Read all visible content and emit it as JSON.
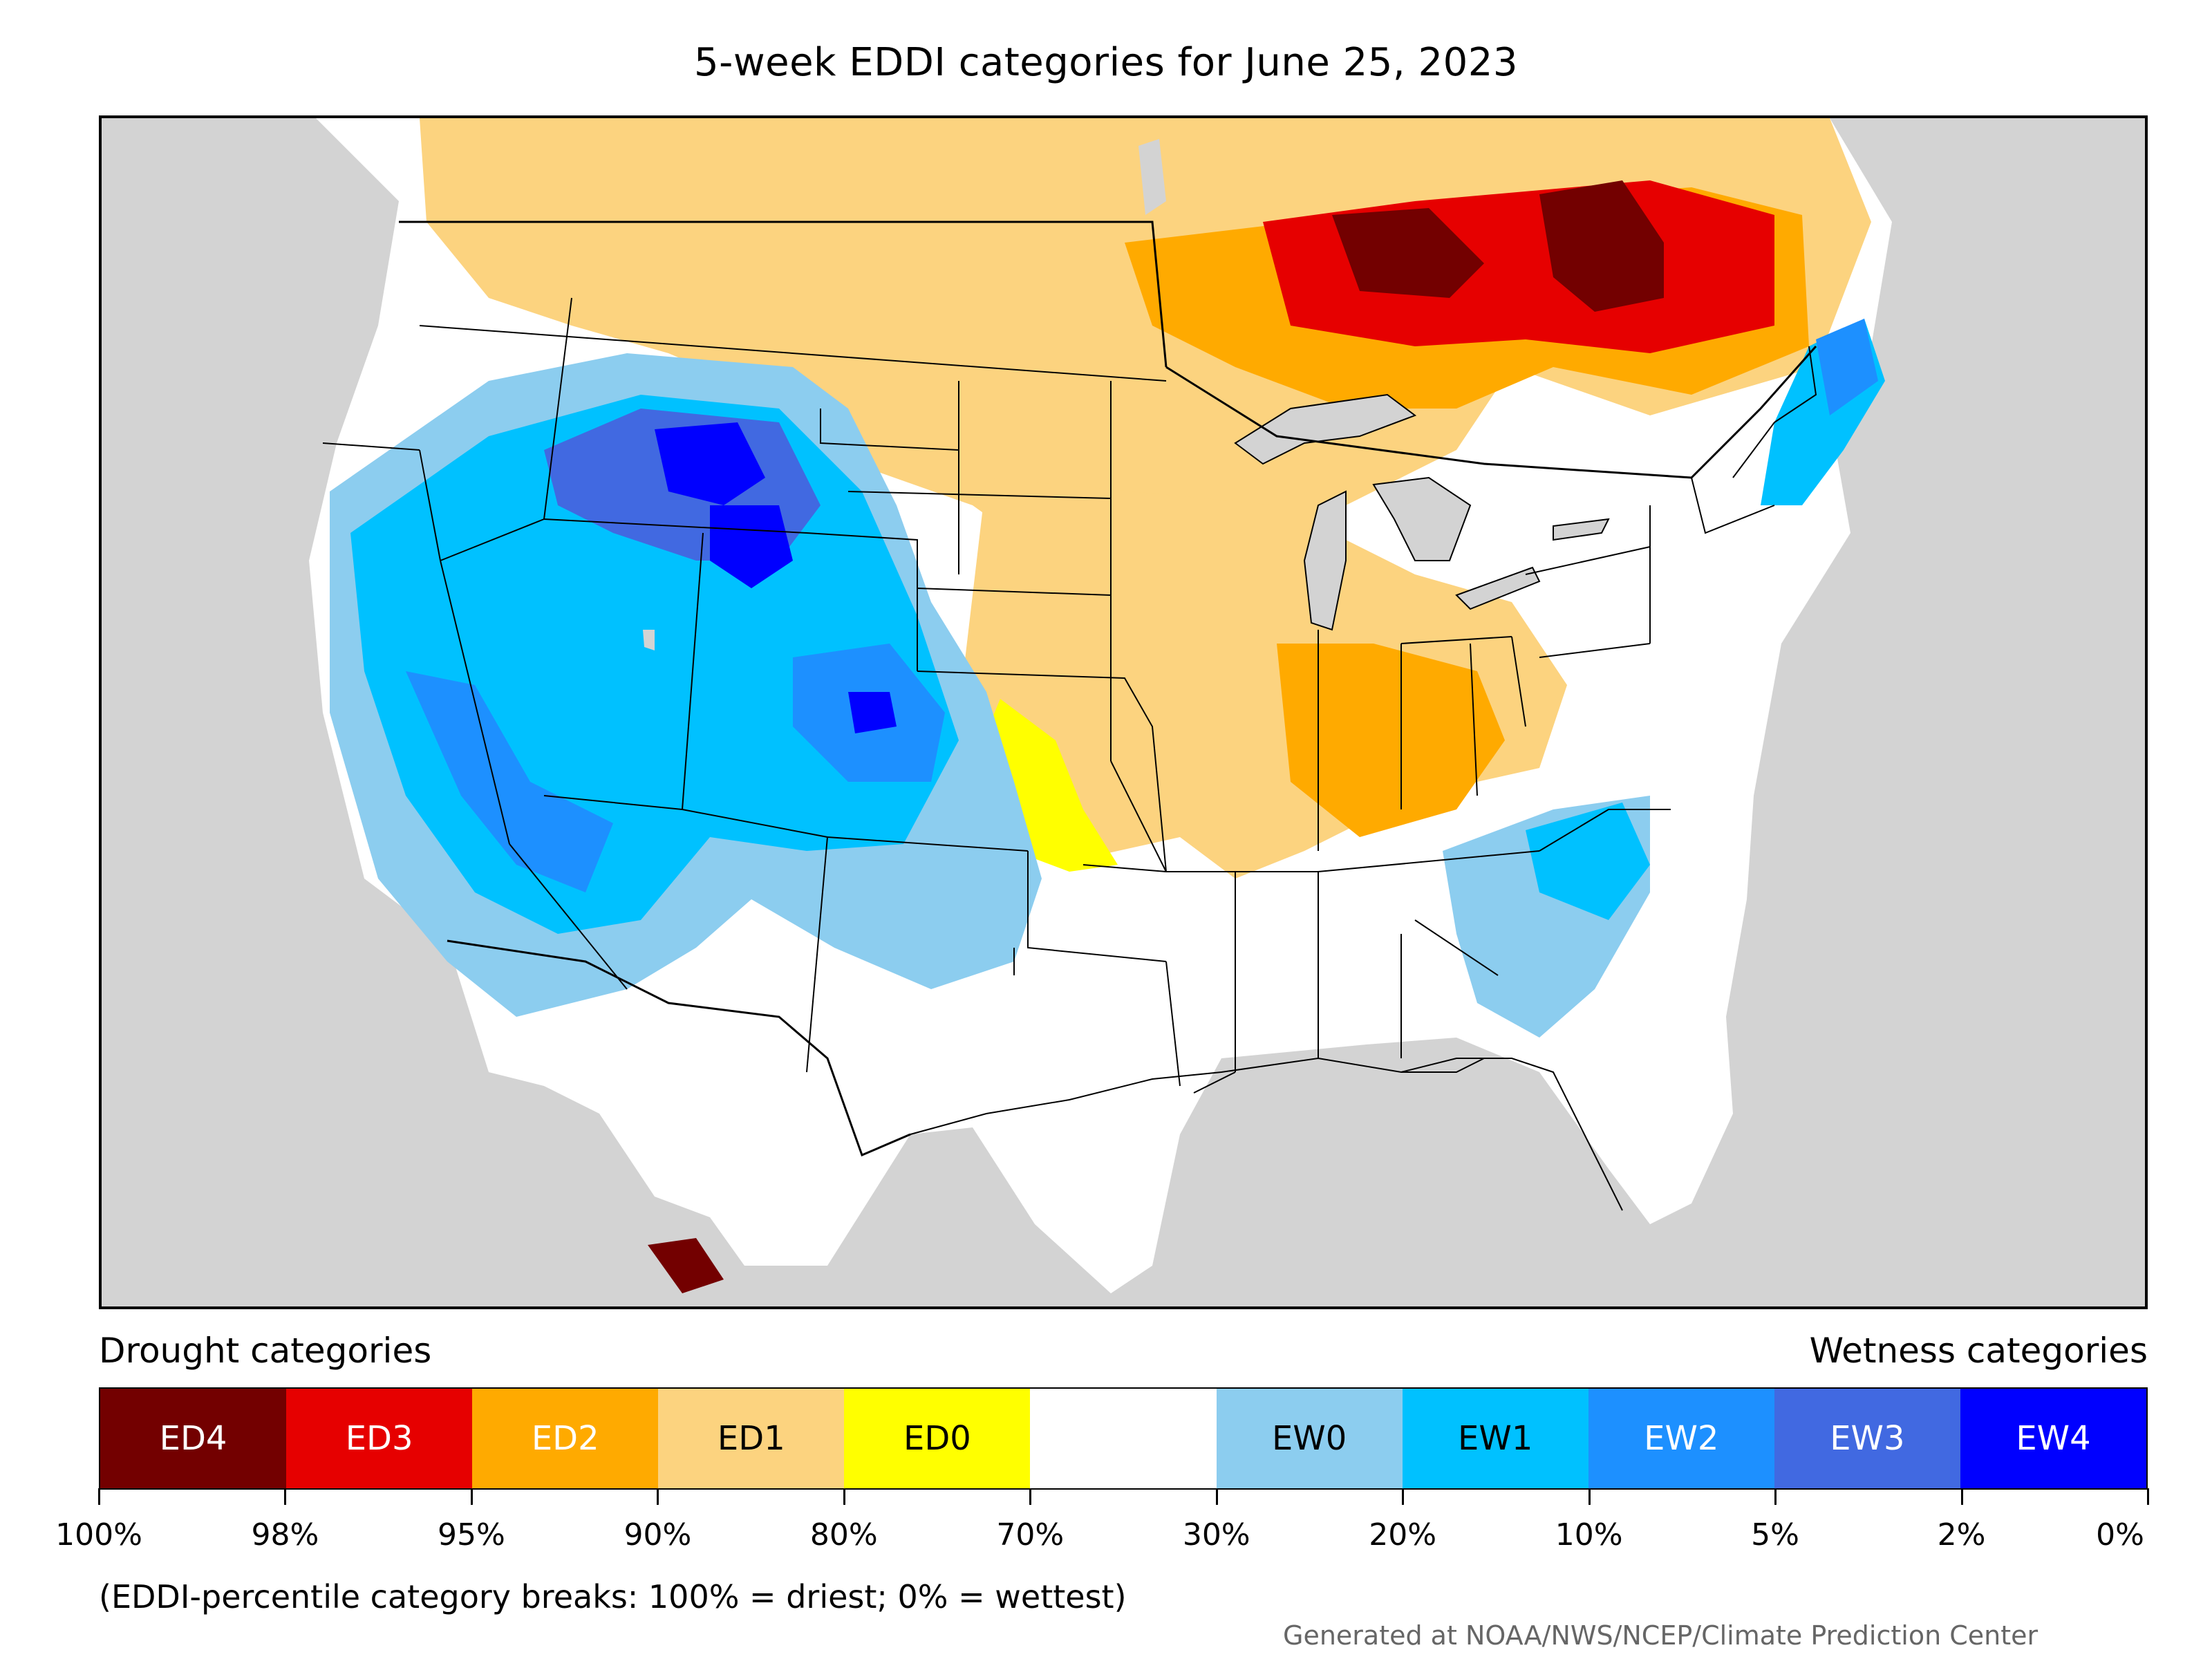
{
  "title": "5-week EDDI categories for June 25, 2023",
  "legend": {
    "left_heading": "Drought categories",
    "right_heading": "Wetness categories",
    "categories": [
      {
        "label": "ED4",
        "color": "#730000",
        "text_color": "#ffffff"
      },
      {
        "label": "ED3",
        "color": "#e60000",
        "text_color": "#ffffff"
      },
      {
        "label": "ED2",
        "color": "#ffaa00",
        "text_color": "#ffffff"
      },
      {
        "label": "ED1",
        "color": "#fcd37f",
        "text_color": "#000000"
      },
      {
        "label": "ED0",
        "color": "#ffff00",
        "text_color": "#000000"
      },
      {
        "label": "",
        "color": "#ffffff",
        "text_color": "#000000"
      },
      {
        "label": "EW0",
        "color": "#8ccdef",
        "text_color": "#000000"
      },
      {
        "label": "EW1",
        "color": "#00c1ff",
        "text_color": "#000000"
      },
      {
        "label": "EW2",
        "color": "#1d90ff",
        "text_color": "#ffffff"
      },
      {
        "label": "EW3",
        "color": "#4169e1",
        "text_color": "#ffffff"
      },
      {
        "label": "EW4",
        "color": "#0000ff",
        "text_color": "#ffffff"
      }
    ],
    "ticks": [
      "100%",
      "98%",
      "95%",
      "90%",
      "80%",
      "70%",
      "30%",
      "20%",
      "10%",
      "5%",
      "2%",
      "0%"
    ]
  },
  "note": "(EDDI-percentile category breaks: 100% = driest; 0% = wettest)",
  "credit": "Generated at NOAA/NWS/NCEP/Climate Prediction Center",
  "map": {
    "background_color": "#d3d3d3",
    "region": "Contiguous United States"
  }
}
